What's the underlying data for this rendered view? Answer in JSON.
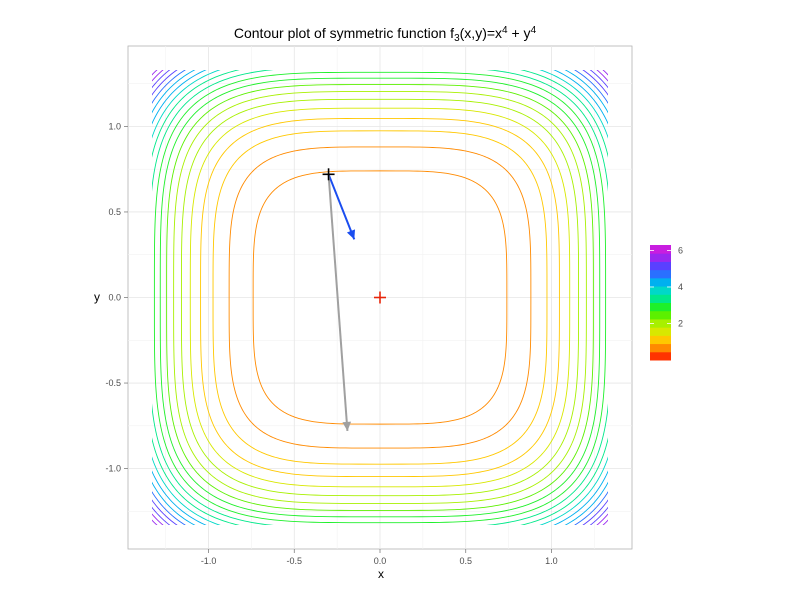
{
  "chart_data": {
    "type": "contour",
    "title": "Contour plot of symmetric function f",
    "title_sub": "3",
    "title_mid": "(x,y)=x",
    "title_sup1": "4",
    "title_plus": " + y",
    "title_sup2": "4",
    "xlabel": "x",
    "ylabel": "y",
    "xlim": [
      -1.47,
      1.47
    ],
    "ylim": [
      -1.47,
      1.47
    ],
    "x_ticks": [
      -1.0,
      -0.5,
      0.0,
      0.5,
      1.0
    ],
    "x_tick_labels": [
      "-1.0",
      "-0.5",
      "0.0",
      "0.5",
      "1.0"
    ],
    "y_ticks": [
      -1.0,
      -0.5,
      0.0,
      0.5,
      1.0
    ],
    "y_tick_labels": [
      "-1.0",
      "-0.5",
      "0.0",
      "0.5",
      "1.0"
    ],
    "grid": true,
    "domain": [
      -1.33,
      1.33
    ],
    "contour_levels": [
      0.3,
      0.6,
      0.9,
      1.2,
      1.5,
      1.8,
      2.1,
      2.4,
      2.7,
      3.0,
      3.3,
      3.6,
      3.9,
      4.2,
      4.5,
      4.8,
      5.1,
      5.4,
      5.7,
      6.0
    ],
    "colorscale": [
      "#ff3300",
      "#ff8a00",
      "#ffc800",
      "#d8e800",
      "#a8f000",
      "#5cf000",
      "#1ef02a",
      "#00e88a",
      "#00d8c8",
      "#00b0f0",
      "#2a70ff",
      "#5a40ff",
      "#9a28f0",
      "#c81ee0"
    ],
    "legend": {
      "range": [
        0,
        6.3
      ],
      "ticks": [
        2,
        4,
        6
      ],
      "tick_labels": [
        "2",
        "4",
        "6"
      ],
      "placement": "right"
    },
    "markers": [
      {
        "name": "start",
        "x": -0.3,
        "y": 0.72,
        "symbol": "+",
        "color": "#000000"
      },
      {
        "name": "minimum",
        "x": 0.0,
        "y": 0.0,
        "symbol": "+",
        "color": "#e8250a"
      }
    ],
    "arrows": [
      {
        "name": "gradient-step-blue",
        "from": [
          -0.3,
          0.72
        ],
        "to": [
          -0.15,
          0.34
        ],
        "color": "#1a4df0"
      },
      {
        "name": "gradient-step-gray",
        "from": [
          -0.3,
          0.72
        ],
        "to": [
          -0.19,
          -0.78
        ],
        "color": "#a0a0a0"
      }
    ]
  }
}
